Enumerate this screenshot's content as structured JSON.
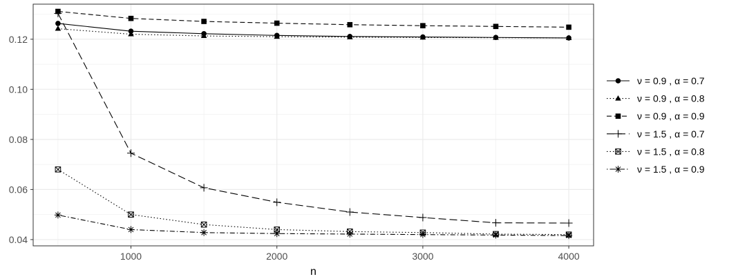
{
  "chart_data": {
    "type": "line",
    "title": "",
    "xlabel": "n",
    "ylabel": "",
    "xlim": [
      330,
      4170
    ],
    "ylim": [
      0.0375,
      0.134
    ],
    "x_ticks": [
      1000,
      2000,
      3000,
      4000
    ],
    "x_tick_labels": [
      "1000",
      "2000",
      "3000",
      "4000"
    ],
    "y_ticks": [
      0.04,
      0.06,
      0.08,
      0.1,
      0.12
    ],
    "y_tick_labels": [
      "0.04",
      "0.06",
      "0.08",
      "0.10",
      "0.12"
    ],
    "grid": true,
    "legend_position": "right",
    "x": [
      500,
      1000,
      1500,
      2000,
      2500,
      3000,
      3500,
      4000
    ],
    "series": [
      {
        "name": "ν = 0.9 , α = 0.7",
        "linetype": "solid",
        "shape": "circle",
        "values": [
          0.1263,
          0.1232,
          0.1222,
          0.1215,
          0.1211,
          0.1209,
          0.1207,
          0.1205
        ]
      },
      {
        "name": "ν = 0.9 , α = 0.8",
        "linetype": "dotted",
        "shape": "triangle",
        "values": [
          0.1242,
          0.122,
          0.1213,
          0.121,
          0.1208,
          0.1207,
          0.1206,
          0.1205
        ]
      },
      {
        "name": "ν = 0.9 , α = 0.9",
        "linetype": "dashed",
        "shape": "square",
        "values": [
          0.1311,
          0.1283,
          0.1271,
          0.1264,
          0.1258,
          0.1254,
          0.1251,
          0.1248
        ]
      },
      {
        "name": "ν = 1.5 , α = 0.7",
        "linetype": "longdash",
        "shape": "plus",
        "values": [
          0.1303,
          0.0745,
          0.0607,
          0.0549,
          0.051,
          0.0488,
          0.0467,
          0.0466
        ]
      },
      {
        "name": "ν = 1.5 , α = 0.8",
        "linetype": "dotted",
        "shape": "boxed-x",
        "values": [
          0.068,
          0.05,
          0.046,
          0.044,
          0.0432,
          0.0428,
          0.0422,
          0.042
        ]
      },
      {
        "name": "ν = 1.5 , α = 0.9",
        "linetype": "dotdash",
        "shape": "asterisk",
        "values": [
          0.0498,
          0.044,
          0.0428,
          0.0424,
          0.0422,
          0.042,
          0.0418,
          0.0416
        ]
      }
    ]
  }
}
